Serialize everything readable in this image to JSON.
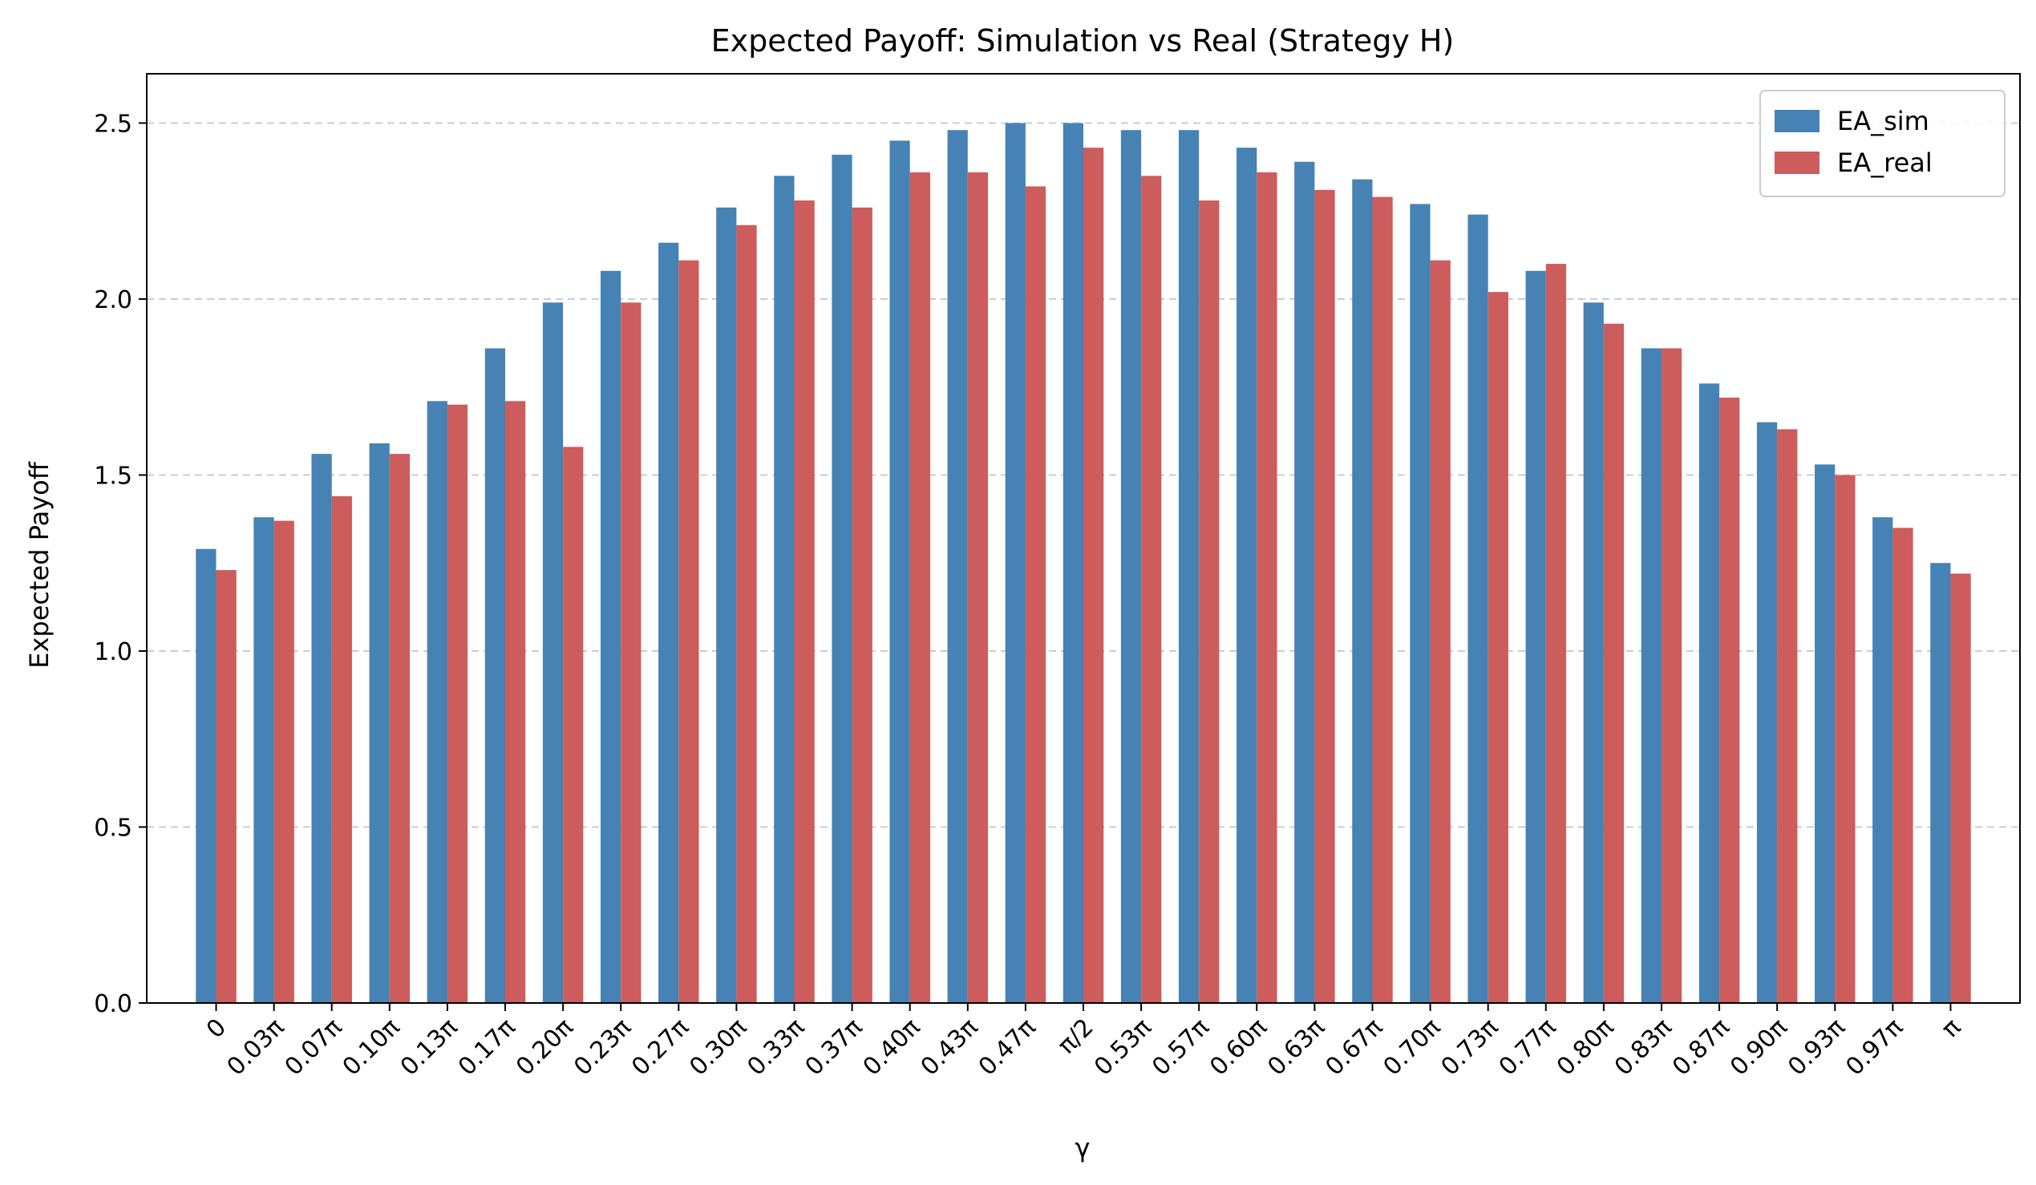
{
  "chart_data": {
    "type": "bar",
    "title": "Expected Payoff: Simulation vs Real (Strategy H)",
    "xlabel": "γ",
    "ylabel": "Expected Payoff",
    "ylim": [
      0,
      2.64
    ],
    "yticks": [
      "0.0",
      "0.5",
      "1.0",
      "1.5",
      "2.0",
      "2.5"
    ],
    "grid": "y-dashed",
    "legend_position": "top-right",
    "categories": [
      "0",
      "0.03π",
      "0.07π",
      "0.10π",
      "0.13π",
      "0.17π",
      "0.20π",
      "0.23π",
      "0.27π",
      "0.30π",
      "0.33π",
      "0.37π",
      "0.40π",
      "0.43π",
      "0.47π",
      "π/2",
      "0.53π",
      "0.57π",
      "0.60π",
      "0.63π",
      "0.67π",
      "0.70π",
      "0.73π",
      "0.77π",
      "0.80π",
      "0.83π",
      "0.87π",
      "0.90π",
      "0.93π",
      "0.97π",
      "π"
    ],
    "series": [
      {
        "name": "EA_sim",
        "color": "#4682b4",
        "values": [
          1.29,
          1.38,
          1.56,
          1.59,
          1.71,
          1.86,
          1.99,
          2.08,
          2.16,
          2.26,
          2.35,
          2.41,
          2.45,
          2.48,
          2.5,
          2.5,
          2.48,
          2.48,
          2.43,
          2.39,
          2.34,
          2.27,
          2.24,
          2.08,
          1.99,
          1.86,
          1.76,
          1.65,
          1.53,
          1.38,
          1.25
        ]
      },
      {
        "name": "EA_real",
        "color": "#cd5c5c",
        "values": [
          1.23,
          1.37,
          1.44,
          1.56,
          1.7,
          1.71,
          1.58,
          1.99,
          2.11,
          2.21,
          2.28,
          2.26,
          2.36,
          2.36,
          2.32,
          2.43,
          2.35,
          2.28,
          2.36,
          2.31,
          2.29,
          2.11,
          2.02,
          2.1,
          1.93,
          1.86,
          1.72,
          1.63,
          1.5,
          1.35,
          1.22
        ]
      }
    ]
  }
}
